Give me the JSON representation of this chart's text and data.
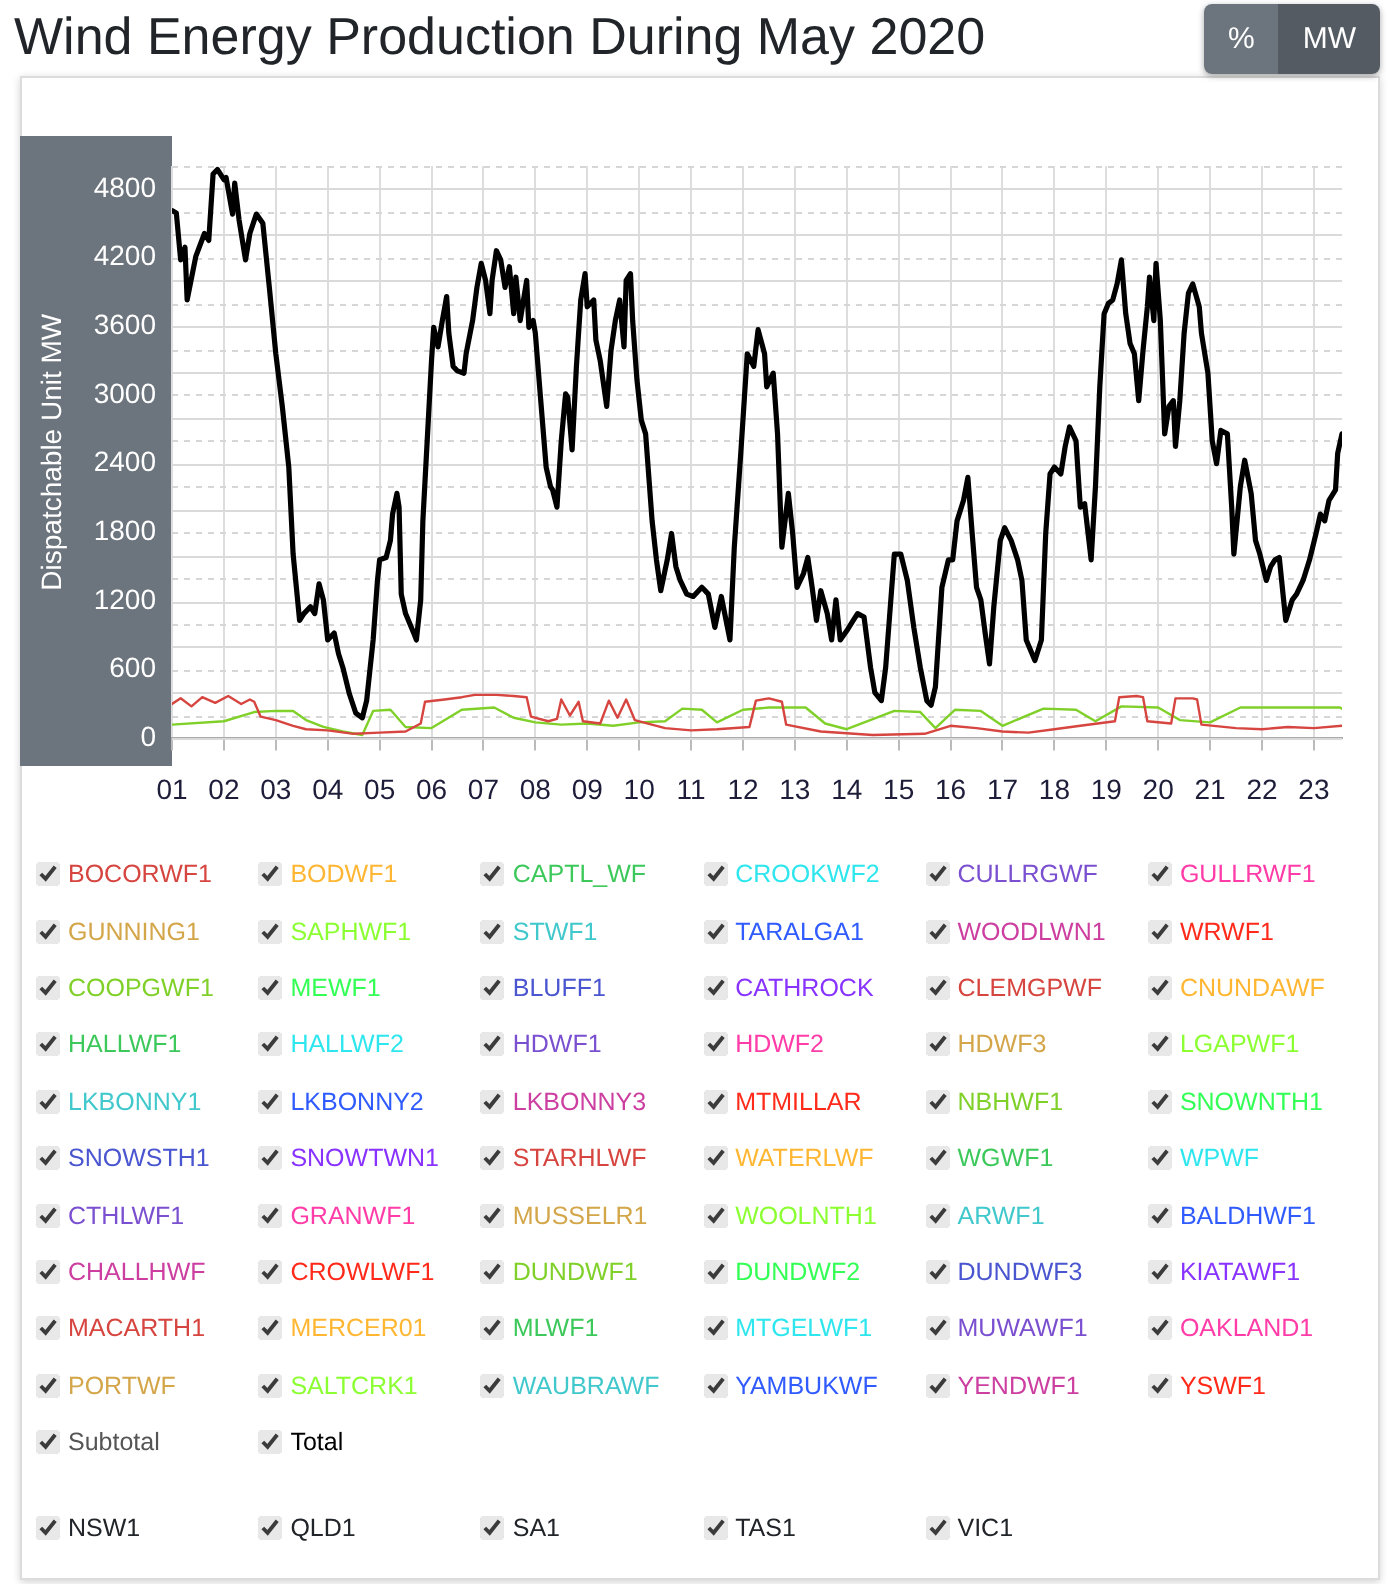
{
  "chart_data": {
    "type": "line",
    "title": "Wind Energy Production During May 2020",
    "ylabel": "Dispatchable Unit MW",
    "xlim": [
      "2020-05-01T00:00",
      "2020-05-23T13:00"
    ],
    "xticks": [
      {
        "value": "2020-05-01",
        "label": "01"
      },
      {
        "value": "2020-05-02",
        "label": "02"
      },
      {
        "value": "2020-05-03",
        "label": "03"
      },
      {
        "value": "2020-05-04",
        "label": "04"
      },
      {
        "value": "2020-05-05",
        "label": "05"
      },
      {
        "value": "2020-05-06",
        "label": "06"
      },
      {
        "value": "2020-05-07",
        "label": "07"
      },
      {
        "value": "2020-05-08",
        "label": "08"
      },
      {
        "value": "2020-05-09",
        "label": "09"
      },
      {
        "value": "2020-05-10",
        "label": "10"
      },
      {
        "value": "2020-05-11",
        "label": "11"
      },
      {
        "value": "2020-05-12",
        "label": "12"
      },
      {
        "value": "2020-05-13",
        "label": "13"
      },
      {
        "value": "2020-05-14",
        "label": "14"
      },
      {
        "value": "2020-05-15",
        "label": "15"
      },
      {
        "value": "2020-05-16",
        "label": "16"
      },
      {
        "value": "2020-05-17",
        "label": "17"
      },
      {
        "value": "2020-05-18",
        "label": "18"
      },
      {
        "value": "2020-05-19",
        "label": "19"
      },
      {
        "value": "2020-05-20",
        "label": "20"
      },
      {
        "value": "2020-05-21",
        "label": "21"
      },
      {
        "value": "2020-05-22",
        "label": "22"
      },
      {
        "value": "2020-05-23",
        "label": "23"
      }
    ],
    "ylim": [
      0,
      5000
    ],
    "yticks": [
      0,
      {
        "value": 200,
        "label": null
      },
      {
        "value": 400,
        "label": null
      },
      600,
      {
        "value": 800,
        "label": null
      },
      {
        "value": 1000,
        "label": null
      },
      1200,
      {
        "value": 1400,
        "label": null
      },
      {
        "value": 1600,
        "label": null
      },
      1800,
      {
        "value": 2000,
        "label": null
      },
      {
        "value": 2200,
        "label": null
      },
      2400,
      {
        "value": 2600,
        "label": null
      },
      {
        "value": 2800,
        "label": null
      },
      3000,
      {
        "value": 3200,
        "label": null
      },
      {
        "value": 3400,
        "label": null
      },
      3600,
      {
        "value": 3800,
        "label": null
      },
      {
        "value": 4000,
        "label": null
      },
      4200,
      {
        "value": 4400,
        "label": null
      },
      {
        "value": 4600,
        "label": null
      },
      4800,
      {
        "value": 5000,
        "label": null
      }
    ],
    "grid": true,
    "legend": "bottom",
    "series": [
      {
        "name": "BOCORWF1",
        "color": "#d6453f"
      },
      {
        "name": "BODWF1",
        "color": "#ffb733"
      },
      {
        "name": "CAPTL_WF",
        "color": "#3cc85a"
      },
      {
        "name": "CROOKWF2",
        "color": "#2ee6ee"
      },
      {
        "name": "CULLRGWF",
        "color": "#7a4fd0"
      },
      {
        "name": "GULLRWF1",
        "color": "#ff3ca8"
      },
      {
        "name": "GUNNING1",
        "color": "#d4a64a"
      },
      {
        "name": "SAPHWF1",
        "color": "#8cff33"
      },
      {
        "name": "STWF1",
        "color": "#40c8cc"
      },
      {
        "name": "TARALGA1",
        "color": "#2f5bff"
      },
      {
        "name": "WOODLWN1",
        "color": "#cc3fa0"
      },
      {
        "name": "WRWF1",
        "color": "#ff2a1a"
      },
      {
        "name": "COOPGWF1",
        "color": "#80d02a",
        "x": [
          "2020-05-01T00:00",
          "2020-05-02T00:00",
          "2020-05-02T14:00",
          "2020-05-03T00:00",
          "2020-05-03T08:00",
          "2020-05-03T14:00",
          "2020-05-03T22:00",
          "2020-05-04T07:00",
          "2020-05-04T16:00",
          "2020-05-04T21:00",
          "2020-05-05T05:00",
          "2020-05-05T12:00",
          "2020-05-06T00:00",
          "2020-05-06T14:00",
          "2020-05-07T05:00",
          "2020-05-07T14:00",
          "2020-05-08T00:00",
          "2020-05-08T12:00",
          "2020-05-09T00:00",
          "2020-05-09T12:00",
          "2020-05-10T00:00",
          "2020-05-10T12:00",
          "2020-05-10T20:00",
          "2020-05-11T05:00",
          "2020-05-11T12:00",
          "2020-05-12T00:00",
          "2020-05-12T12:00",
          "2020-05-13T05:00",
          "2020-05-13T14:00",
          "2020-05-14T00:00",
          "2020-05-14T22:00",
          "2020-05-15T10:00",
          "2020-05-15T17:00",
          "2020-05-16T02:00",
          "2020-05-16T14:00",
          "2020-05-17T00:00",
          "2020-05-17T19:00",
          "2020-05-18T10:00",
          "2020-05-18T19:00",
          "2020-05-19T07:00",
          "2020-05-20T00:00",
          "2020-05-20T10:00",
          "2020-05-21T00:00",
          "2020-05-21T14:00",
          "2020-05-22T12:00",
          "2020-05-23T12:00",
          "2020-05-23T13:00"
        ],
        "values": [
          120,
          150,
          230,
          240,
          240,
          160,
          100,
          60,
          30,
          240,
          250,
          100,
          90,
          250,
          270,
          180,
          140,
          120,
          130,
          110,
          140,
          150,
          260,
          250,
          140,
          250,
          270,
          270,
          130,
          80,
          240,
          230,
          90,
          250,
          240,
          110,
          260,
          250,
          150,
          280,
          270,
          160,
          140,
          270,
          270,
          270,
          260
        ]
      },
      {
        "name": "MEWF1",
        "color": "#33ff55"
      },
      {
        "name": "BLUFF1",
        "color": "#4a55d0"
      },
      {
        "name": "CATHROCK",
        "color": "#8833ff"
      },
      {
        "name": "CLEMGPWF",
        "color": "#d6453f"
      },
      {
        "name": "CNUNDAWF",
        "color": "#ffb733"
      },
      {
        "name": "HALLWF1",
        "color": "#3cc85a"
      },
      {
        "name": "HALLWF2",
        "color": "#2ee6ee"
      },
      {
        "name": "HDWF1",
        "color": "#7a4fd0"
      },
      {
        "name": "HDWF2",
        "color": "#ff3ca8"
      },
      {
        "name": "HDWF3",
        "color": "#d4a64a"
      },
      {
        "name": "LGAPWF1",
        "color": "#8cff33"
      },
      {
        "name": "LKBONNY1",
        "color": "#40c8cc"
      },
      {
        "name": "LKBONNY2",
        "color": "#2f5bff"
      },
      {
        "name": "LKBONNY3",
        "color": "#cc3fa0"
      },
      {
        "name": "MTMILLAR",
        "color": "#ff2a1a"
      },
      {
        "name": "NBHWF1",
        "color": "#80d02a"
      },
      {
        "name": "SNOWNTH1",
        "color": "#33ff55"
      },
      {
        "name": "SNOWSTH1",
        "color": "#4a55d0"
      },
      {
        "name": "SNOWTWN1",
        "color": "#8833ff"
      },
      {
        "name": "STARHLWF",
        "color": "#d6453f"
      },
      {
        "name": "WATERLWF",
        "color": "#ffb733"
      },
      {
        "name": "WGWF1",
        "color": "#3cc85a"
      },
      {
        "name": "WPWF",
        "color": "#2ee6ee"
      },
      {
        "name": "CTHLWF1",
        "color": "#7a4fd0"
      },
      {
        "name": "GRANWF1",
        "color": "#ff3ca8"
      },
      {
        "name": "MUSSELR1",
        "color": "#d4a64a"
      },
      {
        "name": "WOOLNTH1",
        "color": "#8cff33"
      },
      {
        "name": "ARWF1",
        "color": "#40c8cc"
      },
      {
        "name": "BALDHWF1",
        "color": "#2f5bff"
      },
      {
        "name": "CHALLHWF",
        "color": "#cc3fa0"
      },
      {
        "name": "CROWLWF1",
        "color": "#ff2a1a"
      },
      {
        "name": "DUNDWF1",
        "color": "#80d02a"
      },
      {
        "name": "DUNDWF2",
        "color": "#33ff55"
      },
      {
        "name": "DUNDWF3",
        "color": "#4a55d0"
      },
      {
        "name": "KIATAWF1",
        "color": "#8833ff"
      },
      {
        "name": "MACARTH1",
        "color": "#d6453f",
        "x": [
          "2020-05-01T00:00",
          "2020-05-01T04:00",
          "2020-05-01T09:00",
          "2020-05-01T14:00",
          "2020-05-01T20:00",
          "2020-05-02T02:00",
          "2020-05-02T08:00",
          "2020-05-02T12:00",
          "2020-05-02T14:00",
          "2020-05-02T17:00",
          "2020-05-03T00:00",
          "2020-05-03T08:00",
          "2020-05-03T14:00",
          "2020-05-04T00:00",
          "2020-05-04T12:00",
          "2020-05-05T00:00",
          "2020-05-05T12:00",
          "2020-05-05T19:00",
          "2020-05-05T21:00",
          "2020-05-06T06:00",
          "2020-05-06T14:00",
          "2020-05-06T20:00",
          "2020-05-07T06:00",
          "2020-05-07T14:00",
          "2020-05-07T20:00",
          "2020-05-07T22:00",
          "2020-05-08T06:00",
          "2020-05-08T10:00",
          "2020-05-08T12:00",
          "2020-05-08T16:00",
          "2020-05-08T20:00",
          "2020-05-08T22:00",
          "2020-05-09T06:00",
          "2020-05-09T10:00",
          "2020-05-09T14:00",
          "2020-05-09T18:00",
          "2020-05-09T22:00",
          "2020-05-10T12:00",
          "2020-05-11T00:00",
          "2020-05-11T12:00",
          "2020-05-12T03:00",
          "2020-05-12T06:00",
          "2020-05-12T12:00",
          "2020-05-12T18:00",
          "2020-05-12T20:00",
          "2020-05-13T12:00",
          "2020-05-14T12:00",
          "2020-05-15T12:00",
          "2020-05-16T00:00",
          "2020-05-16T12:00",
          "2020-05-17T00:00",
          "2020-05-17T12:00",
          "2020-05-18T00:00",
          "2020-05-18T12:00",
          "2020-05-19T04:00",
          "2020-05-19T06:00",
          "2020-05-19T14:00",
          "2020-05-19T17:00",
          "2020-05-19T19:00",
          "2020-05-20T06:00",
          "2020-05-20T08:00",
          "2020-05-20T16:00",
          "2020-05-20T18:00",
          "2020-05-20T20:00",
          "2020-05-21T12:00",
          "2020-05-22T00:00",
          "2020-05-22T12:00",
          "2020-05-23T00:00",
          "2020-05-23T13:00"
        ],
        "values": [
          300,
          350,
          280,
          360,
          310,
          370,
          300,
          340,
          320,
          190,
          160,
          110,
          80,
          70,
          40,
          50,
          60,
          130,
          320,
          340,
          360,
          380,
          380,
          370,
          360,
          190,
          150,
          170,
          340,
          200,
          320,
          150,
          130,
          330,
          180,
          340,
          160,
          90,
          70,
          80,
          100,
          330,
          350,
          320,
          120,
          60,
          30,
          40,
          110,
          90,
          60,
          50,
          80,
          110,
          150,
          360,
          370,
          360,
          150,
          130,
          350,
          350,
          340,
          120,
          90,
          80,
          100,
          90,
          110
        ]
      },
      {
        "name": "MERCER01",
        "color": "#ffb733"
      },
      {
        "name": "MLWF1",
        "color": "#3cc85a"
      },
      {
        "name": "MTGELWF1",
        "color": "#2ee6ee"
      },
      {
        "name": "MUWAWF1",
        "color": "#7a4fd0"
      },
      {
        "name": "OAKLAND1",
        "color": "#ff3ca8"
      },
      {
        "name": "PORTWF",
        "color": "#d4a64a"
      },
      {
        "name": "SALTCRK1",
        "color": "#8cff33"
      },
      {
        "name": "WAUBRAWF",
        "color": "#40c8cc"
      },
      {
        "name": "YAMBUKWF",
        "color": "#2f5bff"
      },
      {
        "name": "YENDWF1",
        "color": "#cc3fa0"
      },
      {
        "name": "YSWF1",
        "color": "#ff2a1a"
      },
      {
        "name": "Total",
        "color": "#000000",
        "x": [
          "2020-05-01T00:00",
          "2020-05-01T02:00",
          "2020-05-01T04:00",
          "2020-05-01T06:00",
          "2020-05-01T07:00",
          "2020-05-01T11:00",
          "2020-05-01T15:00",
          "2020-05-01T17:00",
          "2020-05-01T19:00",
          "2020-05-01T21:00",
          "2020-05-02T00:00",
          "2020-05-02T01:00",
          "2020-05-02T04:00",
          "2020-05-02T05:00",
          "2020-05-02T07:00",
          "2020-05-02T10:00",
          "2020-05-02T12:00",
          "2020-05-02T15:00",
          "2020-05-02T18:00",
          "2020-05-02T21:00",
          "2020-05-03T00:00",
          "2020-05-03T03:00",
          "2020-05-03T06:00",
          "2020-05-03T08:00",
          "2020-05-03T11:00",
          "2020-05-03T13:00",
          "2020-05-03T16:00",
          "2020-05-03T18:00",
          "2020-05-03T20:00",
          "2020-05-03T22:00",
          "2020-05-04T00:00",
          "2020-05-04T03:00",
          "2020-05-04T05:00",
          "2020-05-04T07:00",
          "2020-05-04T10:00",
          "2020-05-04T13:00",
          "2020-05-04T16:00",
          "2020-05-04T18:00",
          "2020-05-04T21:00",
          "2020-05-04T23:00",
          "2020-05-05T00:00",
          "2020-05-05T03:00",
          "2020-05-05T05:00",
          "2020-05-05T06:00",
          "2020-05-05T08:00",
          "2020-05-05T09:00",
          "2020-05-05T10:00",
          "2020-05-05T12:00",
          "2020-05-05T16:00",
          "2020-05-05T17:00",
          "2020-05-05T19:00",
          "2020-05-05T20:00",
          "2020-05-05T22:00",
          "2020-05-06T00:00",
          "2020-05-06T01:00",
          "2020-05-06T03:00",
          "2020-05-06T05:00",
          "2020-05-06T07:00",
          "2020-05-06T08:00",
          "2020-05-06T10:00",
          "2020-05-06T12:00",
          "2020-05-06T15:00",
          "2020-05-06T16:00",
          "2020-05-06T19:00",
          "2020-05-06T21:00",
          "2020-05-06T23:00",
          "2020-05-07T01:00",
          "2020-05-07T03:00",
          "2020-05-07T04:00",
          "2020-05-07T06:00",
          "2020-05-07T08:00",
          "2020-05-07T10:00",
          "2020-05-07T12:00",
          "2020-05-07T14:00",
          "2020-05-07T15:00",
          "2020-05-07T17:00",
          "2020-05-07T20:00",
          "2020-05-07T21:00",
          "2020-05-07T23:00",
          "2020-05-08T00:00",
          "2020-05-08T02:00",
          "2020-05-08T05:00",
          "2020-05-08T07:00",
          "2020-05-08T08:00",
          "2020-05-08T10:00",
          "2020-05-08T12:00",
          "2020-05-08T14:00",
          "2020-05-08T15:00",
          "2020-05-08T17:00",
          "2020-05-08T19:00",
          "2020-05-08T21:00",
          "2020-05-08T23:00",
          "2020-05-09T00:00",
          "2020-05-09T03:00",
          "2020-05-09T04:00",
          "2020-05-09T06:00",
          "2020-05-09T09:00",
          "2020-05-09T11:00",
          "2020-05-09T13:00",
          "2020-05-09T15:00",
          "2020-05-09T17:00",
          "2020-05-09T18:00",
          "2020-05-09T20:00",
          "2020-05-09T21:00",
          "2020-05-09T23:00",
          "2020-05-10T01:00",
          "2020-05-10T03:00",
          "2020-05-10T06:00",
          "2020-05-10T08:00",
          "2020-05-10T10:00",
          "2020-05-10T13:00",
          "2020-05-10T15:00",
          "2020-05-10T17:00",
          "2020-05-10T19:00",
          "2020-05-10T22:00",
          "2020-05-11T01:00",
          "2020-05-11T05:00",
          "2020-05-11T08:00",
          "2020-05-11T11:00",
          "2020-05-11T14:00",
          "2020-05-11T18:00",
          "2020-05-11T20:00",
          "2020-05-11T23:00",
          "2020-05-12T02:00",
          "2020-05-12T05:00",
          "2020-05-12T07:00",
          "2020-05-12T10:00",
          "2020-05-12T11:00",
          "2020-05-12T14:00",
          "2020-05-12T16:00",
          "2020-05-12T18:00",
          "2020-05-12T21:00",
          "2020-05-12T23:00",
          "2020-05-13T01:00",
          "2020-05-13T04:00",
          "2020-05-13T06:00",
          "2020-05-13T08:00",
          "2020-05-13T10:00",
          "2020-05-13T12:00",
          "2020-05-13T15:00",
          "2020-05-13T17:00",
          "2020-05-13T19:00",
          "2020-05-13T21:00",
          "2020-05-14T00:00",
          "2020-05-14T03:00",
          "2020-05-14T05:00",
          "2020-05-14T08:00",
          "2020-05-14T11:00",
          "2020-05-14T13:00",
          "2020-05-14T16:00",
          "2020-05-14T18:00",
          "2020-05-14T22:00",
          "2020-05-15T01:00",
          "2020-05-15T04:00",
          "2020-05-15T07:00",
          "2020-05-15T10:00",
          "2020-05-15T13:00",
          "2020-05-15T15:00",
          "2020-05-15T17:00",
          "2020-05-15T20:00",
          "2020-05-15T23:00",
          "2020-05-16T01:00",
          "2020-05-16T03:00",
          "2020-05-16T06:00",
          "2020-05-16T08:00",
          "2020-05-16T10:00",
          "2020-05-16T12:00",
          "2020-05-16T14:00",
          "2020-05-16T16:00",
          "2020-05-16T18:00",
          "2020-05-16T20:00",
          "2020-05-16T23:00",
          "2020-05-17T01:00",
          "2020-05-17T04:00",
          "2020-05-17T07:00",
          "2020-05-17T09:00",
          "2020-05-17T11:00",
          "2020-05-17T15:00",
          "2020-05-17T18:00",
          "2020-05-17T20:00",
          "2020-05-17T22:00",
          "2020-05-18T00:00",
          "2020-05-18T03:00",
          "2020-05-18T05:00",
          "2020-05-18T07:00",
          "2020-05-18T10:00",
          "2020-05-18T12:00",
          "2020-05-18T14:00",
          "2020-05-18T17:00",
          "2020-05-18T19:00",
          "2020-05-18T21:00",
          "2020-05-18T23:00",
          "2020-05-19T01:00",
          "2020-05-19T03:00",
          "2020-05-19T05:00",
          "2020-05-19T07:00",
          "2020-05-19T09:00",
          "2020-05-19T11:00",
          "2020-05-19T13:00",
          "2020-05-19T15:00",
          "2020-05-19T17:00",
          "2020-05-19T19:00",
          "2020-05-19T20:00",
          "2020-05-19T22:00",
          "2020-05-19T23:00",
          "2020-05-20T01:00",
          "2020-05-20T03:00",
          "2020-05-20T05:00",
          "2020-05-20T07:00",
          "2020-05-20T08:00",
          "2020-05-20T10:00",
          "2020-05-20T12:00",
          "2020-05-20T14:00",
          "2020-05-20T16:00",
          "2020-05-20T19:00",
          "2020-05-20T20:00",
          "2020-05-20T23:00",
          "2020-05-21T01:00",
          "2020-05-21T03:00",
          "2020-05-21T05:00",
          "2020-05-21T08:00",
          "2020-05-21T10:00",
          "2020-05-21T11:00",
          "2020-05-21T14:00",
          "2020-05-21T16:00",
          "2020-05-21T19:00",
          "2020-05-21T21:00",
          "2020-05-21T23:00",
          "2020-05-22T02:00",
          "2020-05-22T04:00",
          "2020-05-22T06:00",
          "2020-05-22T08:00",
          "2020-05-22T10:00",
          "2020-05-22T11:00",
          "2020-05-22T14:00",
          "2020-05-22T16:00",
          "2020-05-22T19:00",
          "2020-05-22T22:00",
          "2020-05-23T01:00",
          "2020-05-23T03:00",
          "2020-05-23T05:00",
          "2020-05-23T07:00",
          "2020-05-23T10:00",
          "2020-05-23T11:00",
          "2020-05-23T13:00"
        ],
        "values": [
          4610,
          4590,
          4180,
          4290,
          3830,
          4210,
          4410,
          4350,
          4930,
          4970,
          4880,
          4900,
          4580,
          4850,
          4530,
          4180,
          4410,
          4580,
          4500,
          3940,
          3360,
          2900,
          2370,
          1610,
          1030,
          1090,
          1150,
          1090,
          1350,
          1210,
          860,
          920,
          740,
          620,
          390,
          220,
          180,
          330,
          860,
          1380,
          1560,
          1580,
          1730,
          1960,
          2140,
          2020,
          1260,
          1090,
          910,
          860,
          1210,
          1900,
          2600,
          3300,
          3590,
          3420,
          3650,
          3860,
          3540,
          3250,
          3210,
          3190,
          3360,
          3650,
          3940,
          4150,
          4000,
          3710,
          4000,
          4260,
          4180,
          3940,
          4120,
          3710,
          4030,
          3650,
          4000,
          3590,
          3650,
          3540,
          3070,
          2370,
          2200,
          2170,
          2020,
          2600,
          3010,
          2980,
          2520,
          3250,
          3830,
          4060,
          3770,
          3830,
          3480,
          3300,
          2900,
          3390,
          3650,
          3830,
          3420,
          4000,
          4060,
          3650,
          3130,
          2780,
          2660,
          1900,
          1560,
          1290,
          1560,
          1790,
          1500,
          1380,
          1260,
          1240,
          1320,
          1260,
          970,
          1240,
          860,
          1670,
          2490,
          3360,
          3250,
          3570,
          3360,
          3070,
          3190,
          2660,
          1670,
          2140,
          1790,
          1320,
          1440,
          1580,
          1320,
          1030,
          1290,
          1090,
          860,
          1210,
          860,
          940,
          1030,
          1090,
          1060,
          620,
          400,
          330,
          620,
          1610,
          1610,
          1380,
          970,
          620,
          330,
          290,
          450,
          1320,
          1560,
          1560,
          1900,
          2080,
          2280,
          1790,
          1320,
          1210,
          920,
          650,
          1150,
          1730,
          1840,
          1730,
          1560,
          1380,
          860,
          680,
          860,
          1790,
          2310,
          2370,
          2310,
          2550,
          2720,
          2600,
          2020,
          2050,
          1560,
          2200,
          3070,
          3710,
          3800,
          3830,
          3970,
          4180,
          3710,
          3450,
          3360,
          2950,
          3390,
          3770,
          4030,
          3650,
          4150,
          3650,
          2660,
          2900,
          2950,
          2550,
          2950,
          3540,
          3890,
          3970,
          3770,
          3540,
          3190,
          2600,
          2400,
          2690,
          2660,
          2020,
          1610,
          2200,
          2430,
          2140,
          1730,
          1610,
          1380,
          1500,
          1560,
          1580,
          1210,
          1030,
          1210,
          1260,
          1380,
          1560,
          1790,
          1960,
          1900,
          2080,
          2170,
          2490,
          2660
        ]
      }
    ],
    "annotations": [
      "%",
      "MW",
      "Subtotal",
      "NSW1",
      "QLD1",
      "SA1",
      "TAS1",
      "VIC1"
    ]
  }
}
